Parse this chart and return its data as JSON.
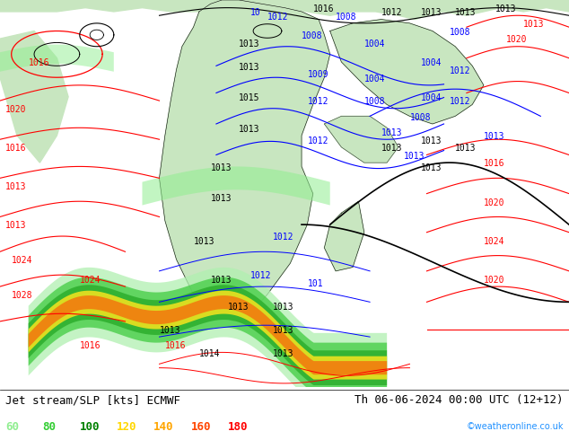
{
  "title_left": "Jet stream/SLP [kts] ECMWF",
  "title_right": "Th 06-06-2024 00:00 UTC (12+12)",
  "watermark": "©weatheronline.co.uk",
  "legend_values": [
    "60",
    "80",
    "100",
    "120",
    "140",
    "160",
    "180"
  ],
  "legend_colors": [
    "#90ee90",
    "#32cd32",
    "#008000",
    "#ffd700",
    "#ffa500",
    "#ff4500",
    "#ff0000"
  ],
  "bg_color": "#ffffff",
  "ocean_color": "#c8dff0",
  "land_color": "#c8e6c0",
  "text_color": "#000000",
  "label_font_size": 7,
  "title_font_size": 9,
  "legend_font_size": 9
}
